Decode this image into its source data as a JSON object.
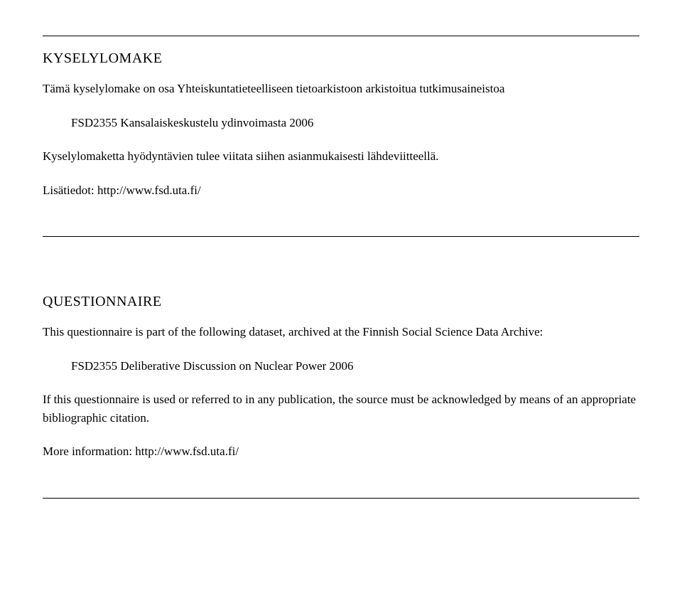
{
  "top": {
    "heading": "KYSELYLOMAKE",
    "intro": "Tämä kyselylomake on osa Yhteiskuntatieteelliseen tietoarkistoon arkistoitua tutkimusaineistoa",
    "dataset": "FSD2355 Kansalaiskeskustelu ydinvoimasta 2006",
    "note": "Kyselylomaketta hyödyntävien tulee viitata siihen asianmukaisesti lähdeviitteellä.",
    "moreinfo": "Lisätiedot: http://www.fsd.uta.fi/"
  },
  "bottom": {
    "heading": "QUESTIONNAIRE",
    "intro": "This questionnaire is part of the following dataset, archived at the Finnish Social Science Data Archive:",
    "dataset": "FSD2355 Deliberative Discussion on Nuclear Power 2006",
    "note": "If this questionnaire is used or referred to in any publication, the source must be acknowledged by means of an appropriate bibliographic citation.",
    "moreinfo": "More information: http://www.fsd.uta.fi/"
  }
}
